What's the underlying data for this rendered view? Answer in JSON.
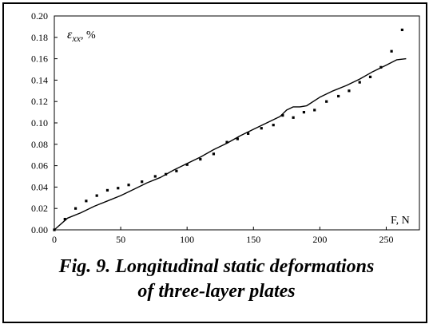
{
  "caption": {
    "line1": "Fig. 9. Longitudinal static deformations",
    "line2": "of three-layer plates"
  },
  "chart_data": {
    "type": "scatter",
    "ylabel_symbol": "ε",
    "ylabel_sub": "xx",
    "ylabel_unit": ", %",
    "xlabel": "F, N",
    "xlim": [
      0,
      275
    ],
    "ylim": [
      0,
      0.2
    ],
    "xticks": [
      0,
      50,
      100,
      150,
      200,
      250
    ],
    "yticks": [
      0,
      0.02,
      0.04,
      0.06,
      0.08,
      0.1,
      0.12,
      0.14,
      0.16,
      0.18,
      0.2
    ],
    "ytick_labels": [
      "0.00",
      "0.02",
      "0.04",
      "0.06",
      "0.08",
      "0.10",
      "0.12",
      "0.14",
      "0.16",
      "0.18",
      "0.20"
    ],
    "grid": false,
    "series": [
      {
        "style": "points",
        "x": [
          0,
          8,
          16,
          24,
          32,
          40,
          48,
          56,
          66,
          76,
          84,
          92,
          100,
          110,
          120,
          130,
          138,
          146,
          156,
          165,
          172,
          180,
          188,
          196,
          205,
          214,
          222,
          230,
          238,
          246,
          254,
          262
        ],
        "y": [
          0.0,
          0.01,
          0.02,
          0.027,
          0.032,
          0.037,
          0.039,
          0.042,
          0.045,
          0.05,
          0.052,
          0.055,
          0.061,
          0.066,
          0.071,
          0.082,
          0.085,
          0.09,
          0.095,
          0.098,
          0.107,
          0.105,
          0.11,
          0.112,
          0.12,
          0.125,
          0.13,
          0.138,
          0.143,
          0.152,
          0.167,
          0.187
        ]
      },
      {
        "style": "line",
        "x": [
          0,
          10,
          20,
          30,
          40,
          50,
          60,
          70,
          80,
          90,
          100,
          110,
          120,
          130,
          140,
          150,
          160,
          170,
          175,
          180,
          185,
          190,
          200,
          210,
          220,
          230,
          240,
          250,
          258,
          265
        ],
        "y": [
          0.0,
          0.011,
          0.016,
          0.022,
          0.027,
          0.032,
          0.038,
          0.044,
          0.049,
          0.056,
          0.062,
          0.068,
          0.075,
          0.081,
          0.088,
          0.094,
          0.1,
          0.106,
          0.112,
          0.115,
          0.115,
          0.116,
          0.124,
          0.13,
          0.135,
          0.141,
          0.148,
          0.154,
          0.159,
          0.16
        ]
      }
    ]
  }
}
